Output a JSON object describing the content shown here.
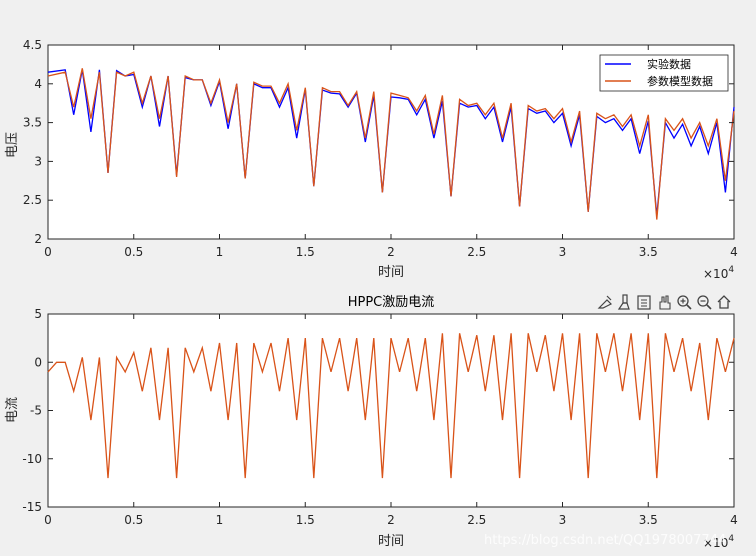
{
  "chart_data": [
    {
      "type": "line",
      "title": "",
      "xlabel": "时间",
      "ylabel": "电压",
      "xlim": [
        0,
        40000
      ],
      "ylim": [
        2,
        4.5
      ],
      "x_ticks": [
        0,
        0.5,
        1,
        1.5,
        2,
        2.5,
        3,
        3.5,
        4
      ],
      "y_ticks": [
        2,
        2.5,
        3,
        3.5,
        4,
        4.5
      ],
      "x_exponent_base": "×10",
      "x_exponent_power": "4",
      "legend": {
        "placement": "top-right",
        "entries": [
          "实验数据",
          "参数模型数据"
        ]
      },
      "series": [
        {
          "name": "实验数据",
          "color": "#0000ff",
          "x": [
            0,
            1000,
            1500,
            2000,
            2500,
            3000,
            3500,
            4000,
            4500,
            5000,
            5500,
            6000,
            6500,
            7000,
            7500,
            8000,
            8500,
            9000,
            9500,
            10000,
            10500,
            11000,
            11500,
            12000,
            12500,
            13000,
            13500,
            14000,
            14500,
            15000,
            15500,
            16000,
            16500,
            17000,
            17500,
            18000,
            18500,
            19000,
            19500,
            20000,
            20500,
            21000,
            21500,
            22000,
            22500,
            23000,
            23500,
            24000,
            24500,
            25000,
            25500,
            26000,
            26500,
            27000,
            27500,
            28000,
            28500,
            29000,
            29500,
            30000,
            30500,
            31000,
            31500,
            32000,
            32500,
            33000,
            33500,
            34000,
            34500,
            35000,
            35500,
            36000,
            36500,
            37000,
            37500,
            38000,
            38500,
            39000,
            39500,
            40000
          ],
          "y": [
            4.15,
            4.18,
            3.6,
            4.18,
            3.38,
            4.18,
            2.85,
            4.17,
            4.1,
            4.12,
            3.7,
            4.1,
            3.45,
            4.1,
            2.82,
            4.08,
            4.05,
            4.05,
            3.72,
            4.03,
            3.42,
            4.0,
            2.78,
            4.0,
            3.95,
            3.95,
            3.7,
            3.95,
            3.3,
            3.93,
            2.68,
            3.92,
            3.88,
            3.87,
            3.7,
            3.88,
            3.25,
            3.85,
            2.6,
            3.83,
            3.82,
            3.8,
            3.6,
            3.8,
            3.3,
            3.78,
            2.55,
            3.75,
            3.7,
            3.72,
            3.55,
            3.7,
            3.25,
            3.7,
            2.42,
            3.68,
            3.62,
            3.65,
            3.5,
            3.62,
            3.2,
            3.6,
            2.35,
            3.58,
            3.5,
            3.55,
            3.4,
            3.55,
            3.1,
            3.52,
            2.3,
            3.5,
            3.3,
            3.48,
            3.2,
            3.45,
            3.1,
            3.5,
            2.6,
            3.7
          ]
        },
        {
          "name": "参数模型数据",
          "color": "#d95319",
          "x": [
            0,
            1000,
            1500,
            2000,
            2500,
            3000,
            3500,
            4000,
            4500,
            5000,
            5500,
            6000,
            6500,
            7000,
            7500,
            8000,
            8500,
            9000,
            9500,
            10000,
            10500,
            11000,
            11500,
            12000,
            12500,
            13000,
            13500,
            14000,
            14500,
            15000,
            15500,
            16000,
            16500,
            17000,
            17500,
            18000,
            18500,
            19000,
            19500,
            20000,
            20500,
            21000,
            21500,
            22000,
            22500,
            23000,
            23500,
            24000,
            24500,
            25000,
            25500,
            26000,
            26500,
            27000,
            27500,
            28000,
            28500,
            29000,
            29500,
            30000,
            30500,
            31000,
            31500,
            32000,
            32500,
            33000,
            33500,
            34000,
            34500,
            35000,
            35500,
            36000,
            36500,
            37000,
            37500,
            38000,
            38500,
            39000,
            39500,
            40000
          ],
          "y": [
            4.1,
            4.15,
            3.7,
            4.2,
            3.55,
            4.15,
            2.85,
            4.15,
            4.1,
            4.15,
            3.75,
            4.1,
            3.55,
            4.1,
            2.8,
            4.1,
            4.05,
            4.05,
            3.75,
            4.05,
            3.5,
            4.0,
            2.78,
            4.02,
            3.97,
            3.97,
            3.75,
            4.0,
            3.4,
            3.95,
            2.68,
            3.95,
            3.9,
            3.9,
            3.72,
            3.9,
            3.3,
            3.9,
            2.6,
            3.88,
            3.85,
            3.82,
            3.65,
            3.85,
            3.35,
            3.85,
            2.55,
            3.8,
            3.72,
            3.75,
            3.6,
            3.75,
            3.3,
            3.75,
            2.42,
            3.72,
            3.65,
            3.68,
            3.55,
            3.68,
            3.25,
            3.65,
            2.35,
            3.62,
            3.55,
            3.6,
            3.45,
            3.6,
            3.2,
            3.6,
            2.25,
            3.55,
            3.4,
            3.55,
            3.3,
            3.5,
            3.2,
            3.55,
            2.75,
            3.65
          ]
        }
      ]
    },
    {
      "type": "line",
      "title": "HPPC激励电流",
      "xlabel": "时间",
      "ylabel": "电流",
      "xlim": [
        0,
        40000
      ],
      "ylim": [
        -15,
        5
      ],
      "x_ticks": [
        0,
        0.5,
        1,
        1.5,
        2,
        2.5,
        3,
        3.5,
        4
      ],
      "y_ticks": [
        -15,
        -10,
        -5,
        0,
        5
      ],
      "x_exponent_base": "×10",
      "x_exponent_power": "4",
      "series": [
        {
          "color": "#d95319",
          "x": [
            0,
            500,
            1000,
            1500,
            2000,
            2500,
            3000,
            3500,
            4000,
            4500,
            5000,
            5500,
            6000,
            6500,
            7000,
            7500,
            8000,
            8500,
            9000,
            9500,
            10000,
            10500,
            11000,
            11500,
            12000,
            12500,
            13000,
            13500,
            14000,
            14500,
            15000,
            15500,
            16000,
            16500,
            17000,
            17500,
            18000,
            18500,
            19000,
            19500,
            20000,
            20500,
            21000,
            21500,
            22000,
            22500,
            23000,
            23500,
            24000,
            24500,
            25000,
            25500,
            26000,
            26500,
            27000,
            27500,
            28000,
            28500,
            29000,
            29500,
            30000,
            30500,
            31000,
            31500,
            32000,
            32500,
            33000,
            33500,
            34000,
            34500,
            35000,
            35500,
            36000,
            36500,
            37000,
            37500,
            38000,
            38500,
            39000,
            39500,
            40000
          ],
          "y": [
            -1,
            0,
            0,
            -3,
            0.5,
            -6,
            0.5,
            -12,
            0.5,
            -1,
            1,
            -3,
            1.5,
            -6,
            1.5,
            -12,
            1.5,
            -1,
            1.5,
            -3,
            2,
            -6,
            2,
            -12,
            2,
            -1,
            2,
            -3,
            2.5,
            -6,
            2.5,
            -12,
            2.5,
            -1,
            2.5,
            -3,
            2.5,
            -6,
            2.5,
            -12,
            2.5,
            -1,
            2.5,
            -3,
            2.5,
            -6,
            3,
            -12,
            3,
            -1,
            2.8,
            -3,
            2.8,
            -6,
            3,
            -12,
            3,
            -1,
            2.8,
            -3,
            3,
            -6,
            3,
            -12,
            3,
            -1,
            3,
            -3,
            3,
            -6,
            3,
            -12,
            3,
            -1,
            2.5,
            -3,
            2,
            -6,
            2.5,
            -1,
            2.5
          ]
        }
      ]
    }
  ],
  "toolbar": {
    "icons": [
      "data-tips-icon",
      "brush-icon",
      "export-icon",
      "pan-icon",
      "zoom-in-icon",
      "zoom-out-icon",
      "home-icon"
    ]
  },
  "watermark": "https://blog.csdn.net/QQ1978007744"
}
